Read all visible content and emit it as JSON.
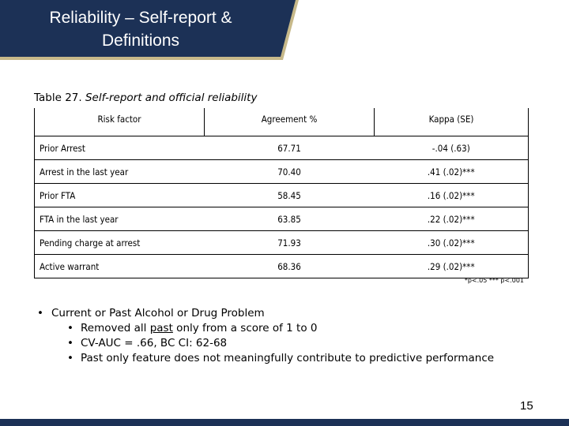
{
  "slide": {
    "title_line1": "Reliability – Self-report &",
    "title_line2": "Definitions",
    "page_number": "15",
    "colors": {
      "banner": "#1c3156",
      "banner_accent": "#c7b98a",
      "bottom_bar": "#1c3156"
    }
  },
  "table": {
    "caption_lead": "Table 27. ",
    "caption_rest": "Self-report and official reliability",
    "headers": [
      "Risk factor",
      "Agreement %",
      "Kappa (SE)"
    ],
    "rows": [
      [
        "Prior Arrest",
        "67.71",
        "-.04 (.63)"
      ],
      [
        "Arrest in the last year",
        "70.40",
        ".41 (.02)***"
      ],
      [
        "Prior FTA",
        "58.45",
        ".16 (.02)***"
      ],
      [
        "FTA in the last year",
        "63.85",
        ".22 (.02)***"
      ],
      [
        "Pending charge at arrest",
        "71.93",
        ".30 (.02)***"
      ],
      [
        "Active warrant",
        "68.36",
        ".29 (.02)***"
      ]
    ],
    "footnote": "*p<.05 *** p<.001"
  },
  "bullets": {
    "main": "Current or Past Alcohol or Drug Problem",
    "sub1_pre": "Removed all ",
    "sub1_underlined": "past",
    "sub1_post": " only from a score of 1 to 0",
    "sub2": "CV-AUC = .66, BC CI: 62-68",
    "sub3": "Past only feature does not meaningfully contribute to predictive performance"
  }
}
